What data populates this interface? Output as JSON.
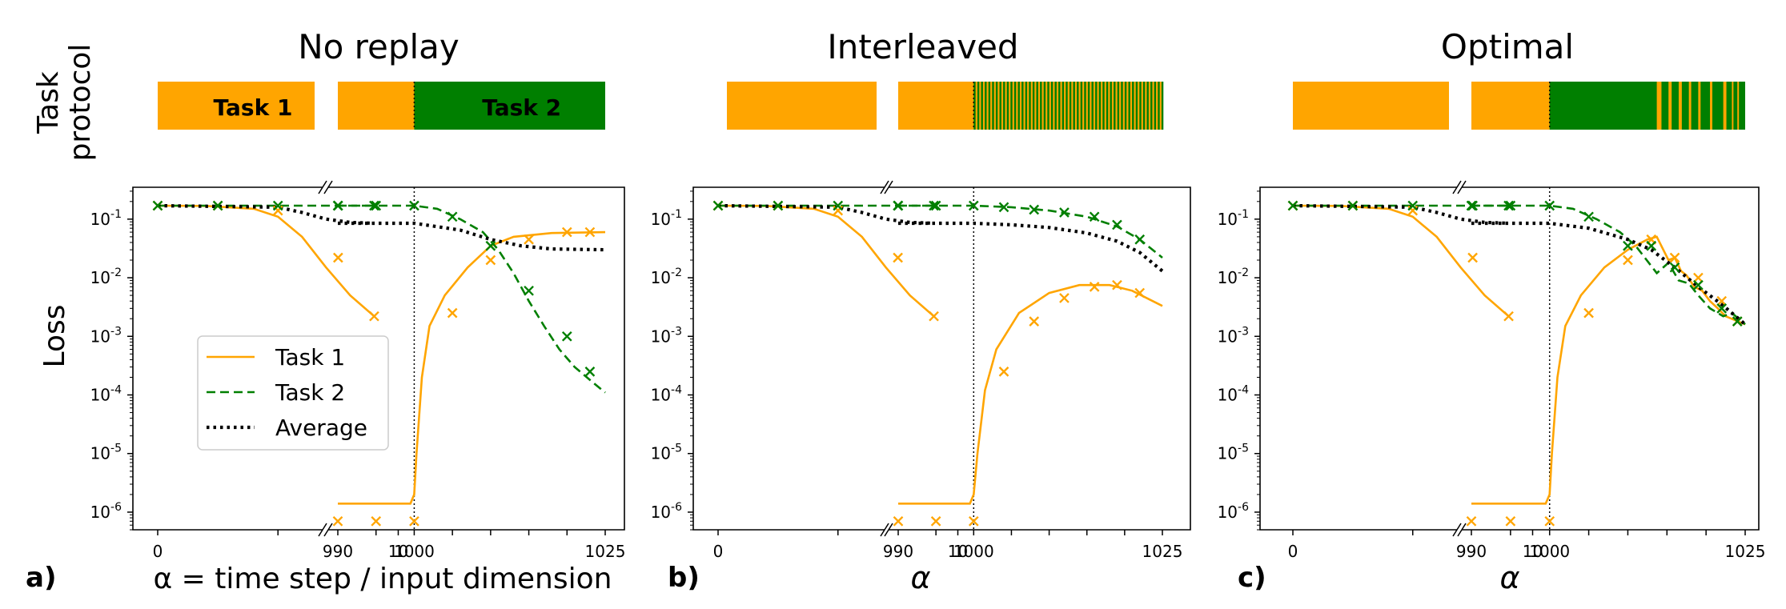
{
  "figure": {
    "row_label_line1": "Task",
    "row_label_line2": "protocol",
    "y_label": "Loss",
    "x_label_a": "α =  time step / input dimension",
    "x_label_alpha": "α"
  },
  "colors": {
    "task1": "#ffa500",
    "task2": "#007f00",
    "average": "#000000"
  },
  "panels": [
    {
      "title": "No replay",
      "letter": "a)",
      "protocol": {
        "task1_label": "Task 1",
        "task2_label": "Task 2",
        "second_segment": "solid_task2",
        "switch_points": []
      }
    },
    {
      "title": "Interleaved",
      "letter": "b)",
      "protocol": {
        "task1_label": "",
        "task2_label": "",
        "second_segment": "interleaved",
        "switch_points": []
      }
    },
    {
      "title": "Optimal",
      "letter": "c)",
      "protocol": {
        "task1_label": "",
        "task2_label": "",
        "second_segment": "optimal",
        "switch_points": [
          1013.7,
          1014.3,
          1015.2,
          1015.6,
          1016.5,
          1016.9,
          1017.8,
          1018.1,
          1019.0,
          1019.3,
          1020.5,
          1020.8,
          1022.2,
          1022.6,
          1023.3,
          1023.5,
          1024.0,
          1024.2
        ]
      }
    }
  ],
  "chart_data": [
    {
      "type": "line",
      "title": "No replay",
      "xlabel": "α =  time step / input dimension",
      "ylabel": "Loss",
      "yscale": "log",
      "ylim": [
        5e-07,
        0.35
      ],
      "xlim_left": [
        -1,
        9.5
      ],
      "xlim_right": [
        990,
        1025
      ],
      "x_ticks_left": [
        "0",
        "10"
      ],
      "x_ticks_right": [
        "990",
        "1000",
        "1025"
      ],
      "y_ticks": [
        "10^-1",
        "10^-2",
        "10^-3",
        "10^-4",
        "10^-5",
        "10^-6"
      ],
      "legend": [
        "Task 1",
        "Task 2",
        "Average"
      ],
      "legend_position": "lower-left",
      "series": [
        {
          "name": "Task 1",
          "style": "solid",
          "left_x": [
            0,
            2,
            4,
            5,
            6,
            7,
            8,
            9
          ],
          "left_y": [
            0.17,
            0.168,
            0.15,
            0.11,
            0.05,
            0.015,
            0.005,
            0.0022
          ],
          "right_x": [
            990,
            999.5,
            1000,
            1000.3,
            1001,
            1002,
            1004,
            1007,
            1010,
            1013,
            1018,
            1025
          ],
          "right_y": [
            1.4e-06,
            1.4e-06,
            2e-06,
            1e-05,
            0.0002,
            0.0015,
            0.005,
            0.015,
            0.035,
            0.05,
            0.058,
            0.06
          ]
        },
        {
          "name": "Task 2",
          "style": "dashed",
          "left_x": [
            0,
            9
          ],
          "left_y": [
            0.17,
            0.17
          ],
          "right_x": [
            990,
            1000,
            1003,
            1006,
            1009,
            1011,
            1013,
            1015,
            1017,
            1019,
            1021,
            1023,
            1025
          ],
          "right_y": [
            0.17,
            0.17,
            0.15,
            0.1,
            0.06,
            0.03,
            0.012,
            0.004,
            0.0015,
            0.0006,
            0.0003,
            0.00018,
            0.00011
          ]
        },
        {
          "name": "Average",
          "style": "dotted",
          "left_x": [
            0,
            5,
            6,
            7,
            8,
            9
          ],
          "left_y": [
            0.17,
            0.16,
            0.13,
            0.1,
            0.088,
            0.085
          ],
          "right_x": [
            990,
            1000,
            1006,
            1010,
            1014,
            1018,
            1025
          ],
          "right_y": [
            0.085,
            0.085,
            0.065,
            0.045,
            0.035,
            0.031,
            0.03
          ]
        }
      ],
      "markers": {
        "task1_x": [
          0,
          2.5,
          5,
          7.5,
          9,
          990,
          995,
          1000,
          1005,
          1010,
          1015,
          1020,
          1023
        ],
        "task1_y": [
          0.17,
          0.17,
          0.14,
          0.022,
          0.0022,
          7e-07,
          7e-07,
          7e-07,
          0.0025,
          0.02,
          0.045,
          0.06,
          0.06
        ],
        "task2_x": [
          0,
          2.5,
          5,
          7.5,
          9,
          990,
          995,
          1000,
          1005,
          1010,
          1015,
          1020,
          1023
        ],
        "task2_y": [
          0.17,
          0.17,
          0.17,
          0.17,
          0.17,
          0.17,
          0.17,
          0.17,
          0.11,
          0.035,
          0.006,
          0.001,
          0.00025
        ]
      }
    },
    {
      "type": "line",
      "title": "Interleaved",
      "xlabel": "α",
      "ylabel": "Loss",
      "yscale": "log",
      "ylim": [
        5e-07,
        0.35
      ],
      "xlim_left": [
        -1,
        9.5
      ],
      "xlim_right": [
        990,
        1025
      ],
      "x_ticks_left": [
        "0",
        "10"
      ],
      "x_ticks_right": [
        "990",
        "1000",
        "1025"
      ],
      "y_ticks": [
        "10^-1",
        "10^-2",
        "10^-3",
        "10^-4",
        "10^-5",
        "10^-6"
      ],
      "series": [
        {
          "name": "Task 1",
          "style": "solid",
          "left_x": [
            0,
            2,
            4,
            5,
            6,
            7,
            8,
            9
          ],
          "left_y": [
            0.17,
            0.168,
            0.15,
            0.11,
            0.05,
            0.015,
            0.005,
            0.0022
          ],
          "right_x": [
            990,
            999.5,
            1000,
            1000.5,
            1001.5,
            1003,
            1006,
            1010,
            1014,
            1018,
            1021,
            1025
          ],
          "right_y": [
            1.4e-06,
            1.4e-06,
            2e-06,
            1e-05,
            0.00012,
            0.0006,
            0.0025,
            0.0055,
            0.0075,
            0.0075,
            0.006,
            0.0033
          ]
        },
        {
          "name": "Task 2",
          "style": "dashed",
          "left_x": [
            0,
            9
          ],
          "left_y": [
            0.17,
            0.17
          ],
          "right_x": [
            990,
            1000,
            1005,
            1010,
            1015,
            1019,
            1022,
            1025
          ],
          "right_y": [
            0.17,
            0.17,
            0.16,
            0.14,
            0.11,
            0.075,
            0.045,
            0.022
          ]
        },
        {
          "name": "Average",
          "style": "dotted",
          "left_x": [
            0,
            5,
            6,
            7,
            8,
            9
          ],
          "left_y": [
            0.17,
            0.16,
            0.13,
            0.1,
            0.088,
            0.085
          ],
          "right_x": [
            990,
            1000,
            1005,
            1010,
            1015,
            1019,
            1022,
            1025
          ],
          "right_y": [
            0.085,
            0.085,
            0.08,
            0.072,
            0.058,
            0.042,
            0.027,
            0.013
          ]
        }
      ],
      "markers": {
        "task1_x": [
          0,
          2.5,
          5,
          7.5,
          9,
          990,
          995,
          1000,
          1004,
          1008,
          1012,
          1016,
          1019,
          1022
        ],
        "task1_y": [
          0.17,
          0.17,
          0.14,
          0.022,
          0.0022,
          7e-07,
          7e-07,
          7e-07,
          0.00025,
          0.0018,
          0.0045,
          0.007,
          0.0075,
          0.0055
        ],
        "task2_x": [
          0,
          2.5,
          5,
          7.5,
          9,
          990,
          995,
          1000,
          1004,
          1008,
          1012,
          1016,
          1019,
          1022
        ],
        "task2_y": [
          0.17,
          0.17,
          0.17,
          0.17,
          0.17,
          0.17,
          0.17,
          0.17,
          0.16,
          0.145,
          0.13,
          0.11,
          0.08,
          0.045
        ]
      }
    },
    {
      "type": "line",
      "title": "Optimal",
      "xlabel": "α",
      "ylabel": "Loss",
      "yscale": "log",
      "ylim": [
        5e-07,
        0.35
      ],
      "xlim_left": [
        -1,
        9.5
      ],
      "xlim_right": [
        990,
        1025
      ],
      "x_ticks_left": [
        "0",
        "10"
      ],
      "x_ticks_right": [
        "990",
        "1000",
        "1025"
      ],
      "y_ticks": [
        "10^-1",
        "10^-2",
        "10^-3",
        "10^-4",
        "10^-5",
        "10^-6"
      ],
      "series": [
        {
          "name": "Task 1",
          "style": "solid",
          "left_x": [
            0,
            2,
            4,
            5,
            6,
            7,
            8,
            9
          ],
          "left_y": [
            0.17,
            0.168,
            0.15,
            0.11,
            0.05,
            0.015,
            0.005,
            0.0022
          ],
          "right_x": [
            990,
            999.5,
            1000,
            1000.3,
            1001,
            1002,
            1004,
            1007,
            1010,
            1012.5,
            1013.7,
            1015.2,
            1016,
            1016.8,
            1017.5,
            1018.5,
            1019.5,
            1020.5,
            1021.5,
            1022.5,
            1025
          ],
          "right_y": [
            1.4e-06,
            1.4e-06,
            2e-06,
            1e-05,
            0.0002,
            0.0015,
            0.005,
            0.015,
            0.03,
            0.045,
            0.05,
            0.02,
            0.022,
            0.013,
            0.011,
            0.007,
            0.006,
            0.004,
            0.003,
            0.0022,
            0.0016
          ]
        },
        {
          "name": "Task 2",
          "style": "dashed",
          "left_x": [
            0,
            9
          ],
          "left_y": [
            0.17,
            0.17
          ],
          "right_x": [
            990,
            1000,
            1003,
            1006,
            1009,
            1011,
            1013.7,
            1015.2,
            1016.5,
            1017.8,
            1019,
            1020.5,
            1022.2,
            1023.3,
            1025
          ],
          "right_y": [
            0.17,
            0.17,
            0.15,
            0.1,
            0.06,
            0.035,
            0.012,
            0.018,
            0.009,
            0.008,
            0.005,
            0.003,
            0.0022,
            0.0025,
            0.0016
          ]
        },
        {
          "name": "Average",
          "style": "dotted",
          "left_x": [
            0,
            5,
            6,
            7,
            8,
            9
          ],
          "left_y": [
            0.17,
            0.16,
            0.13,
            0.1,
            0.088,
            0.085
          ],
          "right_x": [
            990,
            1000,
            1005,
            1010,
            1013,
            1016,
            1019,
            1022,
            1025
          ],
          "right_y": [
            0.085,
            0.085,
            0.07,
            0.045,
            0.03,
            0.015,
            0.007,
            0.0035,
            0.0016
          ]
        }
      ],
      "markers": {
        "task1_x": [
          0,
          2.5,
          5,
          7.5,
          9,
          990,
          995,
          1000,
          1005,
          1010,
          1013,
          1016,
          1019,
          1022,
          1024
        ],
        "task1_y": [
          0.17,
          0.17,
          0.14,
          0.022,
          0.0022,
          7e-07,
          7e-07,
          7e-07,
          0.0025,
          0.02,
          0.045,
          0.022,
          0.01,
          0.004,
          0.0018
        ],
        "task2_x": [
          0,
          2.5,
          5,
          7.5,
          9,
          990,
          995,
          1000,
          1005,
          1010,
          1013,
          1016,
          1019,
          1022,
          1024
        ],
        "task2_y": [
          0.17,
          0.17,
          0.17,
          0.17,
          0.17,
          0.17,
          0.17,
          0.17,
          0.11,
          0.035,
          0.035,
          0.015,
          0.0075,
          0.003,
          0.0018
        ]
      }
    }
  ]
}
